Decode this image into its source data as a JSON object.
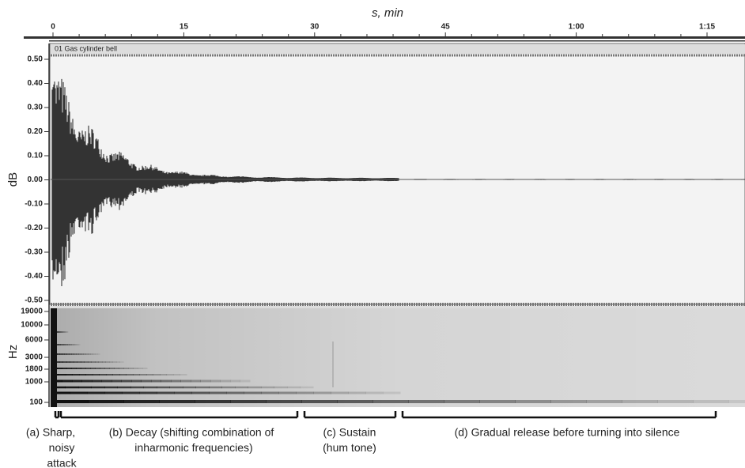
{
  "time_axis": {
    "label": "s, min",
    "ticks": [
      "0",
      "15",
      "30",
      "45",
      "1:00",
      "1:15"
    ]
  },
  "waveform": {
    "track": "01 Gas cylinder bell",
    "label": "dB",
    "ticks": [
      "0.50",
      "0.40",
      "0.30",
      "0.20",
      "0.10",
      "0.00",
      "-0.10",
      "-0.20",
      "-0.30",
      "-0.40",
      "-0.50"
    ]
  },
  "spectrogram": {
    "label": "Hz",
    "ticks": [
      "19000",
      "10000",
      "6000",
      "3000",
      "1800",
      "1000",
      "100"
    ]
  },
  "annotations": [
    {
      "lines": [
        "(a) Sharp,",
        "noisy",
        "attack"
      ]
    },
    {
      "lines": [
        "(b) Decay (shifting combination of",
        "inharmonic frequencies)"
      ]
    },
    {
      "lines": [
        "(c) Sustain",
        "(hum tone)"
      ]
    },
    {
      "lines": [
        "(d) Gradual release before turning into silence"
      ]
    }
  ]
}
